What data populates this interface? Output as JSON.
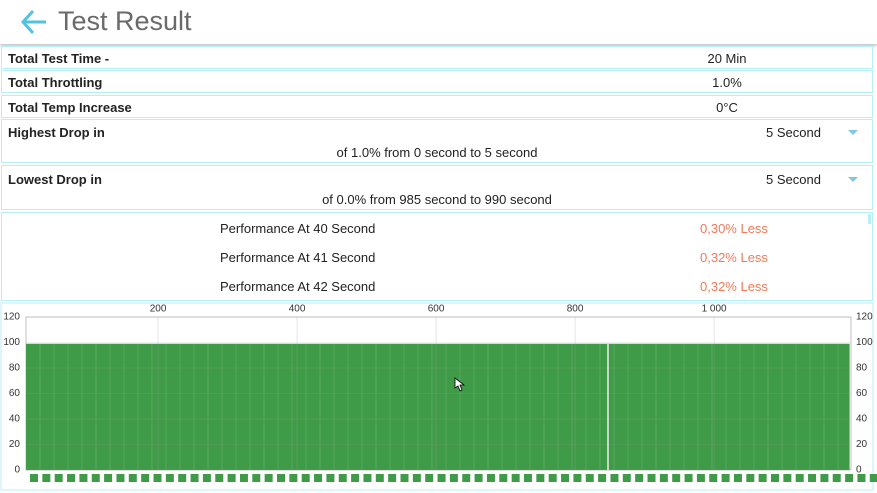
{
  "header": {
    "title": "Test Result"
  },
  "summary": {
    "rows": [
      [
        "Total Test Time -",
        "20 Min"
      ],
      [
        "Total Throttling",
        "1.0%"
      ],
      [
        "Total Temp Increase",
        "0°C"
      ]
    ]
  },
  "drops": [
    {
      "label": "Highest Drop in",
      "select": "5 Second",
      "detail": "of 1.0% from 0 second to  5 second"
    },
    {
      "label": "Lowest Drop in",
      "select": "5 Second",
      "detail": "of 0.0% from 985 second to  990 second"
    }
  ],
  "performance": [
    [
      "Performance At 40 Second",
      "0,30% Less"
    ],
    [
      "Performance At 41 Second",
      "0,32% Less"
    ],
    [
      "Performance At 42 Second",
      "0,32% Less"
    ]
  ],
  "chart_data": {
    "type": "area",
    "x": [
      10,
      1195
    ],
    "values": [
      99,
      99
    ],
    "color": "#3f9b47",
    "xlim": [
      10,
      1197
    ],
    "xticks": [
      200,
      400,
      600,
      800,
      {
        "value": 1000,
        "label": "1 000"
      }
    ],
    "ylim": [
      0,
      120
    ],
    "yticks": [
      0,
      20,
      40,
      60,
      80,
      100,
      120
    ],
    "grid": true
  }
}
